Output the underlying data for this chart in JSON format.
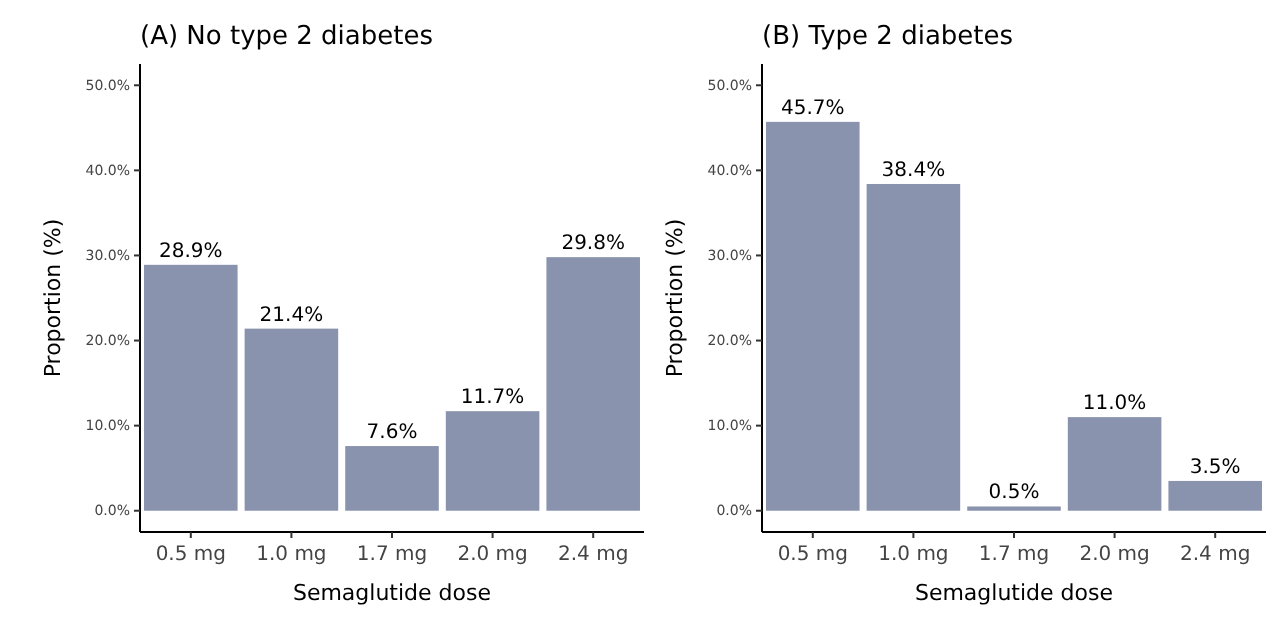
{
  "chart_data": [
    {
      "type": "bar",
      "title": "(A) No type 2 diabetes",
      "xlabel": "Semaglutide dose",
      "ylabel": "Proportion (%)",
      "categories": [
        "0.5 mg",
        "1.0 mg",
        "1.7 mg",
        "2.0 mg",
        "2.4 mg"
      ],
      "values": [
        28.9,
        21.4,
        7.6,
        11.7,
        29.8
      ],
      "value_labels": [
        "28.9%",
        "21.4%",
        "7.6%",
        "11.7%",
        "29.8%"
      ],
      "color": "#8a93ad",
      "ylim": [
        -2.5,
        52.5
      ],
      "yticks": [
        {
          "value": 0,
          "label": "0.0%"
        },
        {
          "value": 10,
          "label": "10.0%"
        },
        {
          "value": 20,
          "label": "20.0%"
        },
        {
          "value": 30,
          "label": "30.0%"
        },
        {
          "value": 40,
          "label": "40.0%"
        },
        {
          "value": 50,
          "label": "50.0%"
        }
      ],
      "grid": false
    },
    {
      "type": "bar",
      "title": "(B) Type 2 diabetes",
      "xlabel": "Semaglutide dose",
      "ylabel": "Proportion (%)",
      "categories": [
        "0.5 mg",
        "1.0 mg",
        "1.7 mg",
        "2.0 mg",
        "2.4 mg"
      ],
      "values": [
        45.7,
        38.4,
        0.5,
        11.0,
        3.5
      ],
      "value_labels": [
        "45.7%",
        "38.4%",
        "0.5%",
        "11.0%",
        "3.5%"
      ],
      "color": "#8a93ad",
      "ylim": [
        -2.5,
        52.5
      ],
      "yticks": [
        {
          "value": 0,
          "label": "0.0%"
        },
        {
          "value": 10,
          "label": "10.0%"
        },
        {
          "value": 20,
          "label": "20.0%"
        },
        {
          "value": 30,
          "label": "30.0%"
        },
        {
          "value": 40,
          "label": "40.0%"
        },
        {
          "value": 50,
          "label": "50.0%"
        }
      ],
      "grid": false
    }
  ]
}
